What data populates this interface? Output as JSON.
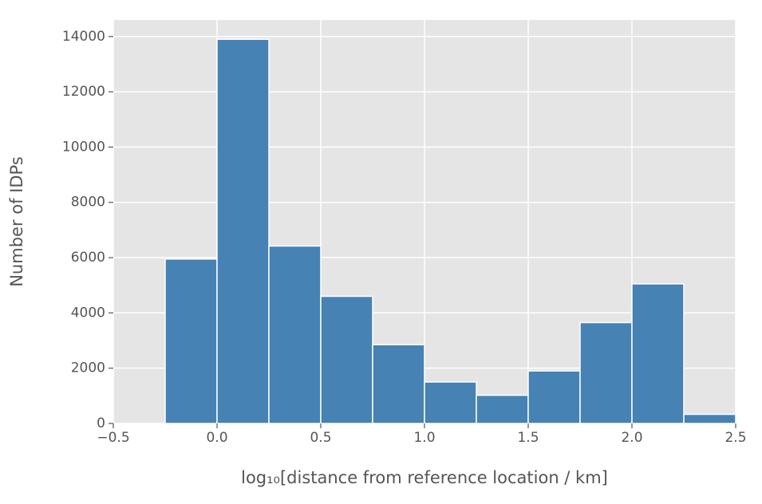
{
  "chart_data": {
    "type": "histogram",
    "xlabel": "log₁₀[distance from reference location / km]",
    "ylabel": "Number of IDPs",
    "bins": [
      -0.25,
      0,
      0.25,
      0.5,
      0.75,
      1.0,
      1.25,
      1.5,
      1.75,
      2.0,
      2.25,
      2.5
    ],
    "values": [
      5950,
      13900,
      6420,
      4600,
      2850,
      1500,
      1020,
      1900,
      3650,
      5050,
      330
    ],
    "color": "#4682b4",
    "xlim": [
      -0.5,
      2.5
    ],
    "xticks": [
      {
        "value": -0.5,
        "label": "−0.5"
      },
      {
        "value": 0,
        "label": "0.0"
      },
      0.5,
      {
        "value": 1.0,
        "label": "1.0"
      },
      1.5,
      {
        "value": 2.0,
        "label": "2.0"
      },
      2.5
    ],
    "ylim": [
      0,
      14600
    ],
    "yticks": [
      0,
      2000,
      4000,
      6000,
      8000,
      10000,
      12000,
      14000
    ],
    "grid": true
  }
}
